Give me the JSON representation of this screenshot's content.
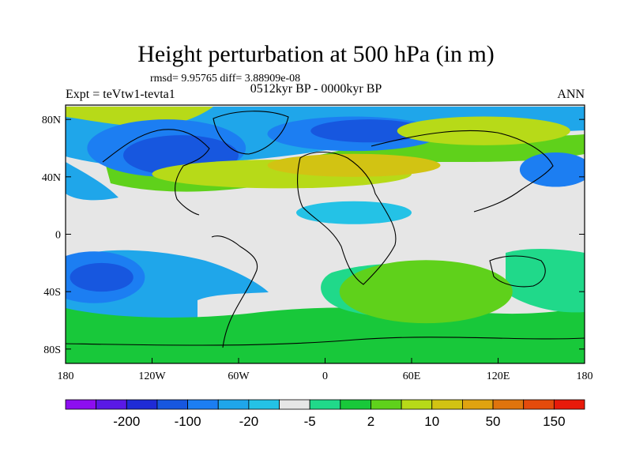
{
  "title": "Height perturbation at 500 hPa (in m)",
  "subtitle": "rmsd= 9.95765 diff= 3.88909e-08",
  "period": "0512kyr BP - 0000kyr BP",
  "experiment": "Expt = teVtw1-tevta1",
  "season": "ANN",
  "axes": {
    "y_ticks": [
      "80N",
      "40N",
      "0",
      "40S",
      "80S"
    ],
    "x_ticks": [
      "180",
      "120W",
      "60W",
      "0",
      "60E",
      "120E",
      "180"
    ]
  },
  "colorbar": {
    "colors": [
      "#8d0ef0",
      "#5a19e6",
      "#1f2bd6",
      "#1757df",
      "#1c7ef2",
      "#1fa6ea",
      "#24c2e6",
      "#e6e6e6",
      "#20d98a",
      "#18c83a",
      "#5fd11b",
      "#b7da18",
      "#d2c313",
      "#e0a310",
      "#e0740d",
      "#e54b0c",
      "#e81a0a"
    ],
    "labels": [
      "-200",
      "-100",
      "-20",
      "-5",
      "2",
      "10",
      "50",
      "150"
    ]
  },
  "map": {
    "blobs": [
      {
        "c": 4,
        "cx": -110,
        "cy": 60,
        "rx": 55,
        "ry": 20
      },
      {
        "c": 3,
        "cx": -100,
        "cy": 55,
        "rx": 40,
        "ry": 14
      },
      {
        "c": 4,
        "cx": 20,
        "cy": 70,
        "rx": 60,
        "ry": 12
      },
      {
        "c": 3,
        "cx": 30,
        "cy": 72,
        "rx": 40,
        "ry": 8
      },
      {
        "c": 11,
        "cx": -30,
        "cy": 42,
        "rx": 90,
        "ry": 10
      },
      {
        "c": 12,
        "cx": 20,
        "cy": 48,
        "rx": 60,
        "ry": 8
      },
      {
        "c": 11,
        "cx": 110,
        "cy": 72,
        "rx": 60,
        "ry": 10
      },
      {
        "c": 4,
        "cx": 160,
        "cy": 45,
        "rx": 25,
        "ry": 12
      },
      {
        "c": 4,
        "cx": -160,
        "cy": -30,
        "rx": 35,
        "ry": 18
      },
      {
        "c": 3,
        "cx": -155,
        "cy": -30,
        "rx": 22,
        "ry": 10
      },
      {
        "c": 11,
        "cx": 60,
        "cy": -45,
        "rx": 40,
        "ry": 12
      },
      {
        "c": 10,
        "cx": 70,
        "cy": -40,
        "rx": 60,
        "ry": 22
      },
      {
        "c": 6,
        "cx": 20,
        "cy": 15,
        "rx": 40,
        "ry": 8
      }
    ]
  }
}
